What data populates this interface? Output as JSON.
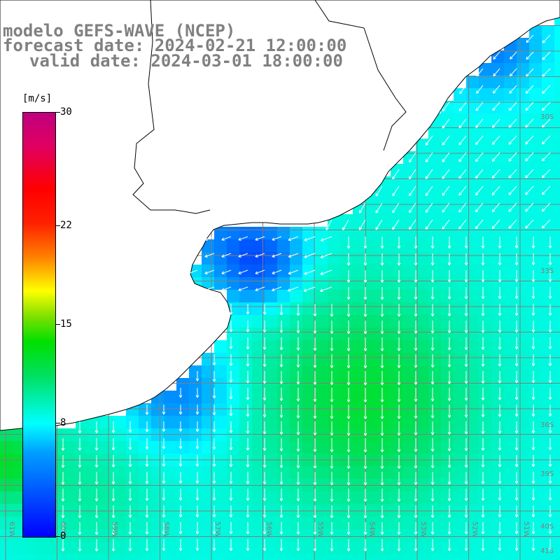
{
  "header": {
    "title": "modelo GEFS-WAVE (NCEP)",
    "forecast_date": "forecast date: 2024-02-21 12:00:00",
    "valid_date": "valid date: 2024-03-01 18:00:00"
  },
  "colorbar": {
    "unit": "[m/s]",
    "ticks": [
      {
        "label": "30",
        "value": 30
      },
      {
        "label": "22",
        "value": 22
      },
      {
        "label": "15",
        "value": 15
      },
      {
        "label": "8",
        "value": 8
      },
      {
        "label": "0",
        "value": 0
      }
    ],
    "range": [
      0,
      30
    ]
  },
  "lat_labels": [
    "30S",
    "33S",
    "36S",
    "39S",
    "40S",
    "41S"
  ],
  "lon_labels": [
    "61W",
    "60W",
    "59W",
    "58W",
    "57W",
    "56W",
    "55W",
    "54W",
    "53W",
    "52W",
    "51W"
  ],
  "colors": {
    "land": "#ffffff",
    "coast": "#000000",
    "grid": "#808080",
    "arrow": "#ffffff",
    "text": "#808080"
  },
  "field": {
    "description_units": "m/s",
    "wind_direction": "southward"
  }
}
